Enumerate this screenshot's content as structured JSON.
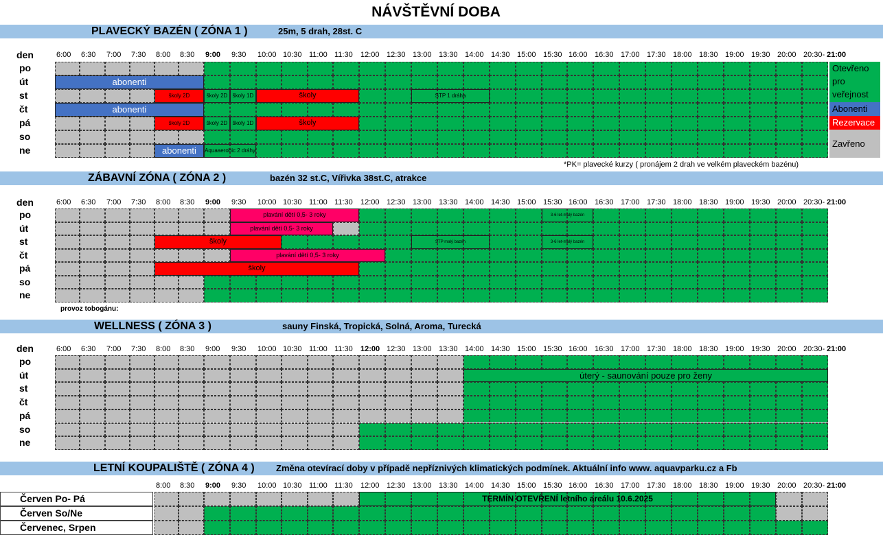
{
  "title": "NÁVŠTĚVNÍ DOBA",
  "colors": {
    "green": "#00b050",
    "gray": "#bfbfbf",
    "blue": "#4472c4",
    "red": "#ff0000",
    "pink": "#ff0066",
    "band": "#9dc3e6"
  },
  "header_col": "den",
  "days": [
    "po",
    "út",
    "st",
    "čt",
    "pá",
    "so",
    "ne"
  ],
  "times": [
    "6:00",
    "6:30",
    "7:00",
    "7:30",
    "8:00",
    "8:30",
    "9:00",
    "9:30",
    "10:00",
    "10:30",
    "11:00",
    "11:30",
    "12:00",
    "12:30",
    "13:00",
    "13:30",
    "14:00",
    "14:30",
    "15:00",
    "15:30",
    "16:00",
    "16:30",
    "17:00",
    "17:30",
    "18:00",
    "18:30",
    "19:00",
    "19:30",
    "20:00",
    "20:30-",
    "21:00"
  ],
  "zone1": {
    "name": "PLAVECKÝ BAZÉN  ( ZÓNA 1 )",
    "desc": "25m, 5 drah, 28st. C",
    "bars": {
      "ut_abonenti": "abonenti",
      "st_skoly2d": "školy 2D",
      "st_skoly2d_b": "školy 2D",
      "st_skoly1d": "školy 1D",
      "st_skoly": "školy",
      "st_stp": "STP 1 dráha",
      "ct_abonenti": "abonenti",
      "pa_skoly2d": "školy 2D",
      "pa_skoly2d_b": "školy 2D",
      "pa_skoly1d": "školy 1D",
      "pa_skoly": "školy",
      "ne_abonenti": "abonenti",
      "ne_aqua": "Aquaaerobic 2 dráhy"
    },
    "legend": {
      "open": "Otevřeno pro veřejnost",
      "abonenti": "Abonenti",
      "rezervace": "Rezervace",
      "zavreno": "Zavřeno"
    },
    "footnote": "*PK= plavecké kurzy ( pronájem 2 drah ve velkém plaveckém bazénu)"
  },
  "zone2": {
    "name": "ZÁBAVNÍ ZÓNA  ( ZÓNA 2 )",
    "desc": "bazén 32 st.C, Vířivka 38st.C, atrakce",
    "bars": {
      "po_plavani": "plavání dětí 0,5- 3 roky",
      "po_36": "3-6 let-malý bazén",
      "ut_plavani": "plavání dětí 0,5- 3 roky",
      "st_skoly": "školy",
      "st_stp": "STP malý bazén",
      "st_36": "3-6 let-malý bazén",
      "ct_plavani": "plavání dětí 0,5- 3 roky",
      "pa_skoly": "školy"
    },
    "note": "provoz tobogánu:"
  },
  "zone3": {
    "name": "WELLNESS  ( ZÓNA 3 )",
    "desc": "sauny Finská, Tropická, Solná, Aroma, Turecká",
    "bars": {
      "ut_zeny": "úterý - saunování pouze pro ženy"
    }
  },
  "zone4": {
    "name": "LETNÍ KOUPALIŠTĚ  ( ZÓNA 4 )",
    "desc": "Změna otevírací doby v případě nepříznivých klimatických podmínek. Aktuální info www. aquavparku.cz a Fb",
    "rows": [
      "Červen  Po- Pá",
      "Červen  So/Ne",
      "Červenec, Srpen"
    ],
    "bar": "TERMÍN OTEVŘENÍ letního areálu 10.6.2025"
  }
}
